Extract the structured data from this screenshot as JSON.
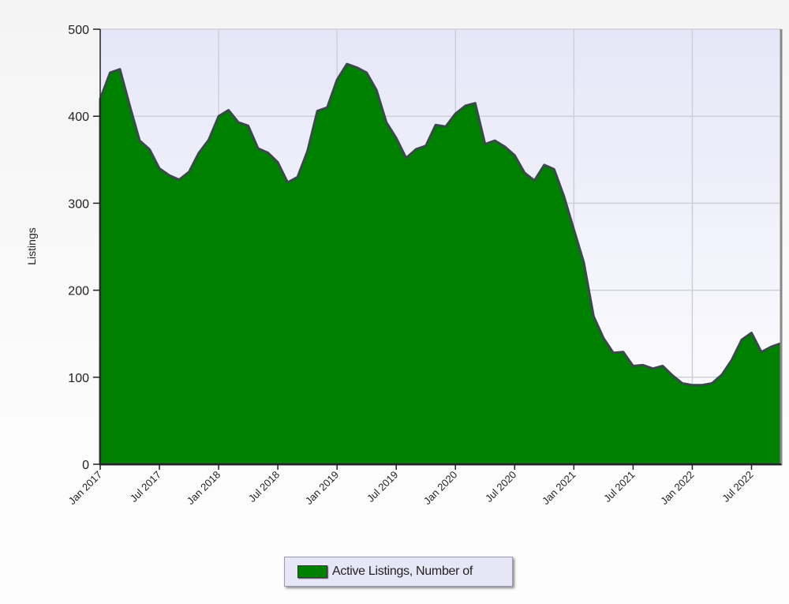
{
  "chart_data": {
    "type": "area",
    "title": "",
    "xlabel": "",
    "ylabel": "Listings",
    "ylim": [
      0,
      500
    ],
    "yticks": [
      "0",
      "100",
      "200",
      "300",
      "400",
      "500"
    ],
    "xlim": [
      "2017-01",
      "2022-10"
    ],
    "xticks": [
      "Jan 2017",
      "Jul 2017",
      "Jan 2018",
      "Jul 2018",
      "Jan 2019",
      "Jul 2019",
      "Jan 2020",
      "Jul 2020",
      "Jan 2021",
      "Jul 2021",
      "Jan 2022",
      "Jul 2022"
    ],
    "grid": true,
    "legend_position": "bottom",
    "colors": {
      "fill": "#008000",
      "line": "#3a4a4a",
      "plot_bg_top": "#e6e6f8",
      "plot_bg_bottom": "#ffffff"
    },
    "series": [
      {
        "name": "Active Listings, Number of",
        "x": [
          "2017-01",
          "2017-02",
          "2017-03",
          "2017-04",
          "2017-05",
          "2017-06",
          "2017-07",
          "2017-08",
          "2017-09",
          "2017-10",
          "2017-11",
          "2017-12",
          "2018-01",
          "2018-02",
          "2018-03",
          "2018-04",
          "2018-05",
          "2018-06",
          "2018-07",
          "2018-08",
          "2018-09",
          "2018-10",
          "2018-11",
          "2018-12",
          "2019-01",
          "2019-02",
          "2019-03",
          "2019-04",
          "2019-05",
          "2019-06",
          "2019-07",
          "2019-08",
          "2019-09",
          "2019-10",
          "2019-11",
          "2019-12",
          "2020-01",
          "2020-02",
          "2020-03",
          "2020-04",
          "2020-05",
          "2020-06",
          "2020-07",
          "2020-08",
          "2020-09",
          "2020-10",
          "2020-11",
          "2020-12",
          "2021-01",
          "2021-02",
          "2021-03",
          "2021-04",
          "2021-05",
          "2021-06",
          "2021-07",
          "2021-08",
          "2021-09",
          "2021-10",
          "2021-11",
          "2021-12",
          "2022-01",
          "2022-02",
          "2022-03",
          "2022-04",
          "2022-05",
          "2022-06",
          "2022-07",
          "2022-08",
          "2022-09",
          "2022-10"
        ],
        "values": [
          420,
          450,
          454,
          412,
          372,
          362,
          340,
          332,
          327,
          336,
          358,
          373,
          400,
          407,
          393,
          389,
          363,
          358,
          347,
          324,
          330,
          360,
          406,
          410,
          442,
          460,
          456,
          450,
          430,
          393,
          375,
          352,
          362,
          366,
          390,
          388,
          403,
          412,
          415,
          368,
          372,
          365,
          355,
          335,
          326,
          344,
          339,
          308,
          270,
          232,
          170,
          145,
          128,
          129,
          113,
          114,
          110,
          113,
          102,
          93,
          91,
          91,
          93,
          103,
          120,
          143,
          151,
          129,
          135,
          139
        ]
      }
    ]
  },
  "legend": {
    "label": "Active Listings, Number of"
  }
}
